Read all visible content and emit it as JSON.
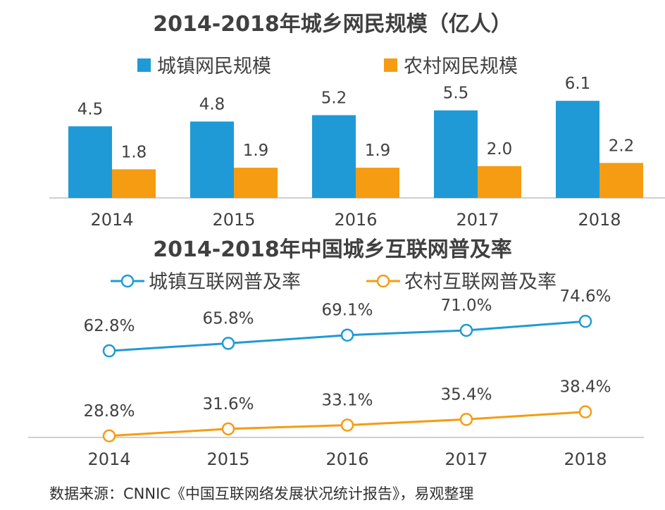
{
  "colors": {
    "urban": "#1f9ad6",
    "rural": "#f59c12",
    "axis": "#bfbfbf",
    "text": "#404040"
  },
  "chart_data": [
    {
      "type": "bar",
      "title": "2014-2018年城乡网民规模（亿人）",
      "categories": [
        "2014",
        "2015",
        "2016",
        "2017",
        "2018"
      ],
      "series": [
        {
          "name": "城镇网民规模",
          "values": [
            4.5,
            4.8,
            5.2,
            5.5,
            6.1
          ],
          "labels": [
            "4.5",
            "4.8",
            "5.2",
            "5.5",
            "6.1"
          ]
        },
        {
          "name": "农村网民规模",
          "values": [
            1.8,
            1.9,
            1.9,
            2.0,
            2.2
          ],
          "labels": [
            "1.8",
            "1.9",
            "1.9",
            "2.0",
            "2.2"
          ]
        }
      ],
      "legend": "top",
      "grid": false
    },
    {
      "type": "line",
      "title": "2014-2018年中国城乡互联网普及率",
      "categories": [
        "2014",
        "2015",
        "2016",
        "2017",
        "2018"
      ],
      "series": [
        {
          "name": "城镇互联网普及率",
          "values": [
            62.8,
            65.8,
            69.1,
            71.0,
            74.6
          ],
          "labels": [
            "62.8%",
            "65.8%",
            "69.1%",
            "71.0%",
            "74.6%"
          ]
        },
        {
          "name": "农村互联网普及率",
          "values": [
            28.8,
            31.6,
            33.1,
            35.4,
            38.4
          ],
          "labels": [
            "28.8%",
            "31.6%",
            "33.1%",
            "35.4%",
            "38.4%"
          ]
        }
      ],
      "legend": "top",
      "grid": false
    }
  ],
  "source": "数据来源：CNNIC《中国互联网络发展状况统计报告》，易观整理"
}
